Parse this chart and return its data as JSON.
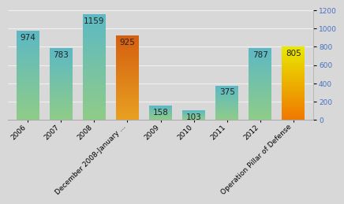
{
  "categories": [
    "2006",
    "2007",
    "2008",
    "December 2008-January ...",
    "2009",
    "2010",
    "2011",
    "2012",
    "Operation Pillar of Defense"
  ],
  "values": [
    974,
    783,
    1159,
    925,
    158,
    103,
    375,
    787,
    805
  ],
  "bar_top_colors": [
    "#5cb8c4",
    "#5cb8c4",
    "#5cb8c4",
    "#d45f10",
    "#5cb8c4",
    "#5cb8c4",
    "#5cb8c4",
    "#5cb8c4",
    "#e8e800"
  ],
  "bar_bottom_colors": [
    "#8fcc88",
    "#8fcc88",
    "#8fcc88",
    "#e8a020",
    "#8fcc88",
    "#8fcc88",
    "#8fcc88",
    "#8fcc88",
    "#f07800"
  ],
  "ylim": [
    0,
    1200
  ],
  "yticks": [
    0,
    200,
    400,
    600,
    800,
    1000,
    1200
  ],
  "background_color": "#d8d8d8",
  "grid_color": "#f0f0f0",
  "value_fontsize": 7.5,
  "tick_fontsize": 6.5,
  "right_tick_color": "#4472c4"
}
